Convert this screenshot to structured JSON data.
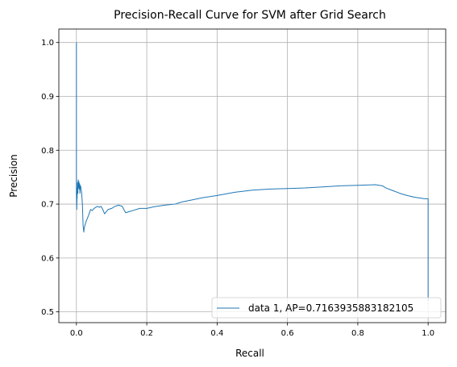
{
  "chart_data": {
    "type": "line",
    "title": "Precision-Recall Curve for SVM after Grid Search",
    "xlabel": "Recall",
    "ylabel": "Precision",
    "xlim": [
      -0.05,
      1.05
    ],
    "ylim": [
      0.48,
      1.025
    ],
    "xticks": [
      0.0,
      0.2,
      0.4,
      0.6,
      0.8,
      1.0
    ],
    "xtick_labels": [
      "0.0",
      "0.2",
      "0.4",
      "0.6",
      "0.8",
      "1.0"
    ],
    "yticks": [
      0.5,
      0.6,
      0.7,
      0.8,
      0.9,
      1.0
    ],
    "ytick_labels": [
      "0.5",
      "0.6",
      "0.7",
      "0.8",
      "0.9",
      "1.0"
    ],
    "grid": true,
    "legend_position": "bottom-right",
    "series": [
      {
        "name": "data 1, AP=0.7163935883182105",
        "color": "#1f77b4",
        "x": [
          0.0,
          0.0,
          0.001,
          0.002,
          0.002,
          0.003,
          0.004,
          0.005,
          0.006,
          0.007,
          0.008,
          0.009,
          0.01,
          0.011,
          0.013,
          0.015,
          0.017,
          0.019,
          0.021,
          0.022,
          0.024,
          0.026,
          0.03,
          0.035,
          0.04,
          0.045,
          0.05,
          0.055,
          0.06,
          0.065,
          0.07,
          0.075,
          0.08,
          0.085,
          0.09,
          0.1,
          0.11,
          0.12,
          0.13,
          0.135,
          0.14,
          0.15,
          0.16,
          0.18,
          0.2,
          0.22,
          0.25,
          0.28,
          0.3,
          0.33,
          0.36,
          0.4,
          0.45,
          0.5,
          0.55,
          0.6,
          0.65,
          0.7,
          0.75,
          0.8,
          0.85,
          0.87,
          0.88,
          0.9,
          0.92,
          0.94,
          0.96,
          0.98,
          0.99,
          1.0,
          1.0
        ],
        "values": [
          1.0,
          0.72,
          0.69,
          0.73,
          0.71,
          0.74,
          0.72,
          0.745,
          0.73,
          0.742,
          0.728,
          0.738,
          0.72,
          0.735,
          0.73,
          0.72,
          0.7,
          0.66,
          0.648,
          0.655,
          0.66,
          0.665,
          0.672,
          0.68,
          0.69,
          0.688,
          0.692,
          0.694,
          0.696,
          0.694,
          0.696,
          0.69,
          0.682,
          0.686,
          0.69,
          0.692,
          0.696,
          0.698,
          0.696,
          0.69,
          0.684,
          0.686,
          0.688,
          0.692,
          0.692,
          0.695,
          0.698,
          0.7,
          0.704,
          0.708,
          0.712,
          0.716,
          0.722,
          0.726,
          0.728,
          0.729,
          0.73,
          0.732,
          0.734,
          0.735,
          0.736,
          0.734,
          0.73,
          0.725,
          0.72,
          0.716,
          0.713,
          0.711,
          0.71,
          0.71,
          0.52
        ]
      }
    ]
  }
}
